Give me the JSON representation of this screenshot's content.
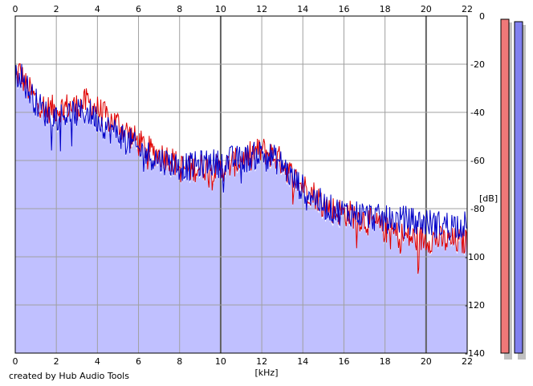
{
  "chart_data": {
    "type": "line",
    "xlabel": "[kHz]",
    "ylabel": "[dB]",
    "xlim": [
      0,
      22
    ],
    "ylim": [
      -140,
      0
    ],
    "x_ticks": [
      0,
      2,
      4,
      6,
      8,
      10,
      12,
      14,
      16,
      18,
      20,
      22
    ],
    "y_ticks": [
      0,
      -20,
      -40,
      -60,
      -80,
      -100,
      -120,
      -140
    ],
    "grid": true,
    "colors": {
      "red": "#e00000",
      "blue": "#0000c8",
      "fill": "#c0c0ff",
      "meter_red": "#f07878",
      "meter_blue": "#8080f0"
    },
    "series": [
      {
        "color": "red",
        "x": [
          0,
          0.2,
          0.5,
          1,
          1.5,
          2,
          2.5,
          3,
          3.5,
          4,
          4.5,
          5,
          5.5,
          6,
          6.5,
          7,
          7.5,
          8,
          8.5,
          9,
          9.5,
          10,
          10.5,
          11,
          11.5,
          12,
          12.5,
          13,
          13.5,
          14,
          14.5,
          15,
          15.5,
          16,
          16.5,
          17,
          17.5,
          18,
          18.5,
          19,
          19.5,
          20,
          20.5,
          21,
          21.5,
          22
        ],
        "values": [
          -26,
          -22,
          -28,
          -34,
          -38,
          -38,
          -37,
          -37,
          -35,
          -38,
          -42,
          -44,
          -48,
          -52,
          -55,
          -57,
          -58,
          -62,
          -63,
          -62,
          -62,
          -63,
          -61,
          -59,
          -57,
          -55,
          -57,
          -60,
          -66,
          -70,
          -73,
          -77,
          -80,
          -81,
          -82,
          -84,
          -86,
          -88,
          -90,
          -91,
          -92,
          -92,
          -92,
          -93,
          -93,
          -93
        ]
      },
      {
        "color": "blue",
        "x": [
          0,
          0.2,
          0.5,
          1,
          1.5,
          2,
          2.5,
          3,
          3.5,
          4,
          4.5,
          5,
          5.5,
          6,
          6.5,
          7,
          7.5,
          8,
          8.5,
          9,
          9.5,
          10,
          10.5,
          11,
          11.5,
          12,
          12.5,
          13,
          13.5,
          14,
          14.5,
          15,
          15.5,
          16,
          16.5,
          17,
          17.5,
          18,
          18.5,
          19,
          19.5,
          20,
          20.5,
          21,
          21.5,
          22
        ],
        "values": [
          -26,
          -22,
          -28,
          -35,
          -40,
          -41,
          -40,
          -40,
          -39,
          -42,
          -46,
          -48,
          -51,
          -55,
          -57,
          -59,
          -60,
          -62,
          -62,
          -61,
          -60,
          -61,
          -59,
          -59,
          -58,
          -56,
          -58,
          -61,
          -67,
          -71,
          -74,
          -78,
          -80,
          -81,
          -81,
          -82,
          -83,
          -84,
          -84,
          -84,
          -85,
          -85,
          -86,
          -86,
          -86,
          -86
        ]
      }
    ],
    "footer": "created by Hub Audio Tools"
  }
}
